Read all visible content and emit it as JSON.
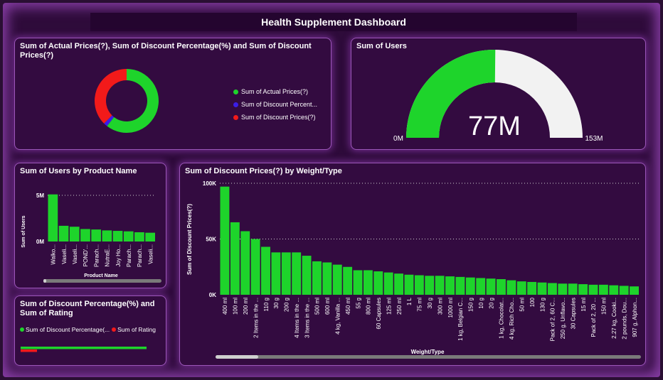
{
  "dashboard_title": "Health Supplement Dashboard",
  "colors": {
    "green": "#1ed42b",
    "blue": "#3b1de8",
    "red": "#f21a1a",
    "gauge_bg": "#f2f2f2"
  },
  "donut_card": {
    "title": "Sum of Actual Prices(?), Sum of Discount Percentage(%) and Sum of Discount Prices(?)",
    "legend": [
      "Sum of Actual Prices(?)",
      "Sum of Discount Percent...",
      "Sum of Discount Prices(?)"
    ]
  },
  "gauge_card": {
    "title": "Sum of Users",
    "value_label": "77M",
    "min_label": "0M",
    "max_label": "153M",
    "value": 77,
    "max": 153
  },
  "users_card": {
    "title": "Sum of Users by Product Name",
    "ylabel": "Sum of Users",
    "xlabel": "Product Name"
  },
  "rating_card": {
    "title": "Sum of Discount Percentage(%) and Sum of Rating",
    "legend": [
      "Sum of Discount Percentage(...",
      "Sum of Rating"
    ]
  },
  "discount_card": {
    "title": "Sum of Discount Prices(?) by Weight/Type",
    "ylabel": "Sum of Discount Prices(?)",
    "xlabel": "Weight/Type"
  },
  "chart_data": [
    {
      "type": "pie",
      "donut": true,
      "categories": [
        "Sum of Actual Prices(?)",
        "Sum of Discount Percent...",
        "Sum of Discount Prices(?)"
      ],
      "values": [
        60.5,
        2.0,
        37.5
      ]
    },
    {
      "type": "bar",
      "ytick_labels": [
        "5M",
        "0M"
      ],
      "yticks": [
        5,
        0
      ],
      "ylim": [
        0,
        6
      ],
      "categories": [
        "Walko...",
        "Vaseli...",
        "Vaseli...",
        "POND'...",
        "Parach...",
        "NutraE...",
        "Joy Ho...",
        "Parach...",
        "Parach...",
        "Vaseli..."
      ],
      "values": [
        5.1,
        1.7,
        1.6,
        1.35,
        1.3,
        1.2,
        1.15,
        1.1,
        1.0,
        0.95
      ]
    },
    {
      "type": "bar",
      "yticks": [
        100,
        50,
        0
      ],
      "ytick_labels": [
        "100K",
        "50K",
        "0K"
      ],
      "ylim": [
        0,
        100
      ],
      "categories": [
        "400 ml",
        "100 ml",
        "200 ml",
        "2 Items in the ...",
        "110 g",
        "30 g",
        "200 g",
        "4 Items in the ...",
        "3 Items in the ...",
        "500 ml",
        "600 ml",
        "4 kg, Vanilla ...",
        "450 ml",
        "55 g",
        "800 ml",
        "60 Capsules",
        "125 ml",
        "250 ml",
        "1 L",
        "75 ml",
        "30 g",
        "300 ml",
        "1000 ml",
        "1 kg, Belgian C...",
        "150 g",
        "10 g",
        "20 g",
        "1 kg, Chocolat...",
        "4 kg, Rich Cho...",
        "50 ml",
        "100",
        "130 g",
        "Pack of 2, 60 C...",
        "250 g, Unflavo...",
        "30 Capsules",
        "15 ml",
        "Pack of 2, 20 ...",
        "150 ml",
        "2.27 kg, Cooki...",
        "2 pounds, Dou...",
        "907 g, Alphon..."
      ],
      "values": [
        97,
        65,
        57,
        50,
        43,
        38,
        38,
        38,
        35,
        30,
        29,
        27,
        25,
        22,
        22,
        21,
        20,
        19,
        18,
        17.5,
        17,
        17,
        16.5,
        16,
        15.5,
        15,
        14.5,
        14,
        13,
        12,
        11.5,
        11,
        10.5,
        10,
        10,
        9.5,
        9,
        9,
        8.5,
        8,
        7.5
      ],
      "title": "Sum of Discount Prices(?) by Weight/Type",
      "xlabel": "Weight/Type",
      "ylabel": "Sum of Discount Prices(?)"
    },
    {
      "type": "bar",
      "orientation": "horizontal",
      "categories": [
        "Sum of Discount Percentage(...",
        "Sum of Rating"
      ],
      "values": [
        100,
        13
      ]
    }
  ]
}
